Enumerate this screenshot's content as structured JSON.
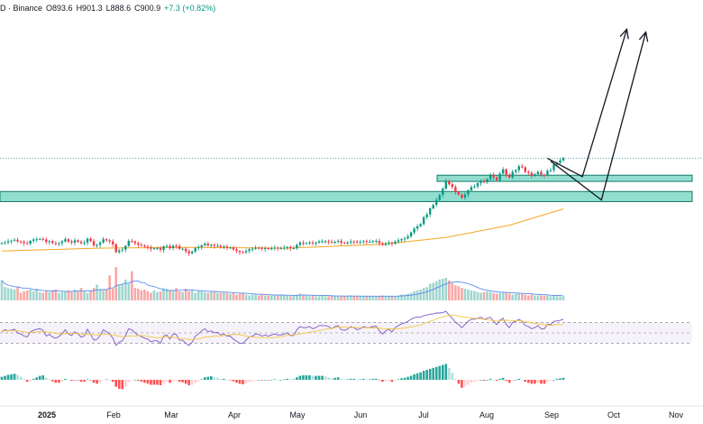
{
  "legend": {
    "prefix": "D · Binance",
    "open": "O893.6",
    "high": "H901.3",
    "low": "L888.6",
    "close": "C900.9",
    "change": "+7.3 (+0.82%)"
  },
  "colors": {
    "up": "#089981",
    "down": "#f23645",
    "volume_up": "#9fd6cf",
    "volume_down": "#f7a9a7",
    "ma": "#f5a623",
    "rsi_line": "#7e57c2",
    "rsi_ma": "#f5c542",
    "zone_fill": "#6cd3bf",
    "zone_stroke": "#127a6b",
    "vol_ma": "#5b8def"
  },
  "chart_data": {
    "type": "candlestick",
    "x_ticks": [
      "2025",
      "Feb",
      "Mar",
      "Apr",
      "May",
      "Jun",
      "Jul",
      "Aug",
      "Sep",
      "Oct",
      "Nov"
    ],
    "price_close": [
      598,
      601,
      605,
      607,
      610,
      604,
      603,
      598,
      596,
      606,
      611,
      612,
      613,
      611,
      602,
      605,
      598,
      595,
      598,
      604,
      612,
      604,
      600,
      608,
      603,
      598,
      600,
      614,
      605,
      590,
      592,
      600,
      612,
      608,
      604,
      594,
      566,
      572,
      575,
      588,
      606,
      604,
      598,
      592,
      590,
      586,
      583,
      578,
      580,
      580,
      574,
      586,
      588,
      580,
      589,
      588,
      578,
      578,
      569,
      562,
      568,
      580,
      584,
      590,
      596,
      590,
      592,
      588,
      589,
      584,
      586,
      582,
      582,
      576,
      570,
      566,
      565,
      570,
      576,
      578,
      582,
      581,
      578,
      580,
      578,
      580,
      582,
      580,
      580,
      582,
      584,
      580,
      580,
      592,
      600,
      598,
      598,
      600,
      598,
      600,
      604,
      604,
      605,
      603,
      600,
      603,
      606,
      599,
      598,
      600,
      604,
      603,
      600,
      602,
      605,
      603,
      603,
      605,
      606,
      598,
      592,
      597,
      600,
      596,
      603,
      608,
      612,
      615,
      622,
      636,
      650,
      658,
      666,
      690,
      700,
      722,
      734,
      752,
      770,
      792,
      820,
      808,
      798,
      780,
      771,
      760,
      771,
      786,
      798,
      800,
      812,
      820,
      815,
      826,
      842,
      832,
      822,
      846,
      861,
      842,
      832,
      852,
      858,
      872,
      868,
      852,
      848,
      838,
      844,
      852,
      842,
      840,
      856,
      858,
      878,
      884,
      893,
      900.9
    ],
    "ma_line": [
      {
        "i": 0,
        "v": 570
      },
      {
        "i": 30,
        "v": 580
      },
      {
        "i": 60,
        "v": 583
      },
      {
        "i": 90,
        "v": 580
      },
      {
        "i": 120,
        "v": 594
      },
      {
        "i": 140,
        "v": 618
      },
      {
        "i": 160,
        "v": 662
      },
      {
        "i": 177,
        "v": 720
      }
    ],
    "support_zone": [
      746,
      782
    ],
    "resistance_zone": [
      818,
      840
    ],
    "projection_arrows": [
      [
        {
          "i": 172,
          "v": 900
        },
        {
          "i": 183,
          "v": 835
        },
        {
          "i": 197,
          "v": 1360
        }
      ],
      [
        {
          "i": 173,
          "v": 890
        },
        {
          "i": 189,
          "v": 752
        },
        {
          "i": 203,
          "v": 1350
        }
      ]
    ],
    "volume": [
      48,
      32,
      30,
      28,
      26,
      32,
      18,
      22,
      24,
      26,
      22,
      28,
      20,
      18,
      24,
      20,
      22,
      26,
      18,
      20,
      22,
      24,
      20,
      26,
      22,
      30,
      22,
      18,
      22,
      30,
      38,
      28,
      24,
      26,
      60,
      28,
      80,
      36,
      40,
      50,
      40,
      70,
      30,
      28,
      24,
      26,
      22,
      18,
      24,
      20,
      22,
      30,
      28,
      24,
      24,
      30,
      22,
      20,
      28,
      22,
      24,
      18,
      24,
      22,
      20,
      18,
      20,
      20,
      18,
      18,
      20,
      18,
      16,
      18,
      14,
      16,
      18,
      14,
      12,
      14,
      14,
      12,
      14,
      12,
      12,
      12,
      14,
      12,
      14,
      12,
      12,
      10,
      12,
      14,
      16,
      14,
      12,
      10,
      12,
      10,
      10,
      12,
      10,
      10,
      12,
      10,
      10,
      10,
      10,
      10,
      12,
      10,
      10,
      10,
      10,
      10,
      10,
      10,
      10,
      10,
      12,
      10,
      10,
      10,
      10,
      12,
      14,
      14,
      16,
      18,
      22,
      24,
      26,
      30,
      32,
      40,
      42,
      46,
      50,
      52,
      54,
      48,
      42,
      36,
      34,
      30,
      28,
      26,
      24,
      22,
      20,
      18,
      20,
      22,
      20,
      18,
      16,
      18,
      20,
      18,
      16,
      14,
      16,
      18,
      16,
      14,
      12,
      14,
      12,
      12,
      12,
      12,
      12,
      10,
      12,
      10,
      10,
      10
    ],
    "rsi": [
      52,
      56,
      54,
      55,
      57,
      50,
      48,
      44,
      42,
      52,
      55,
      57,
      58,
      55,
      44,
      47,
      42,
      40,
      43,
      48,
      56,
      48,
      45,
      52,
      48,
      42,
      44,
      57,
      47,
      36,
      38,
      45,
      56,
      52,
      48,
      40,
      26,
      32,
      35,
      45,
      58,
      56,
      50,
      45,
      43,
      40,
      38,
      33,
      35,
      35,
      30,
      44,
      46,
      38,
      48,
      47,
      36,
      36,
      30,
      26,
      32,
      44,
      48,
      54,
      58,
      52,
      54,
      50,
      51,
      46,
      48,
      44,
      44,
      38,
      34,
      30,
      30,
      36,
      42,
      44,
      48,
      47,
      44,
      46,
      44,
      46,
      48,
      46,
      46,
      48,
      50,
      45,
      45,
      56,
      62,
      60,
      60,
      62,
      58,
      60,
      64,
      64,
      64,
      62,
      58,
      62,
      64,
      56,
      55,
      57,
      62,
      60,
      56,
      58,
      62,
      60,
      60,
      62,
      63,
      54,
      48,
      54,
      57,
      52,
      60,
      64,
      67,
      69,
      72,
      76,
      79,
      80,
      80,
      83,
      84,
      86,
      86,
      88,
      88,
      89,
      91,
      84,
      78,
      70,
      66,
      60,
      66,
      72,
      76,
      76,
      78,
      80,
      76,
      78,
      80,
      72,
      66,
      74,
      78,
      66,
      60,
      70,
      72,
      76,
      72,
      64,
      62,
      58,
      60,
      64,
      58,
      58,
      66,
      66,
      72,
      73,
      74,
      76
    ],
    "macd_hist": [
      6,
      8,
      10,
      11,
      12,
      10,
      6,
      2,
      -4,
      -3,
      2,
      5,
      8,
      9,
      4,
      1,
      -3,
      -6,
      -6,
      -3,
      2,
      1,
      -2,
      0,
      -1,
      -4,
      -4,
      1,
      -1,
      -6,
      -8,
      -6,
      -1,
      1,
      0,
      -4,
      -14,
      -18,
      -19,
      -14,
      -5,
      -1,
      0,
      -2,
      -4,
      -6,
      -8,
      -10,
      -10,
      -10,
      -11,
      -7,
      -4,
      -6,
      -3,
      -2,
      -4,
      -5,
      -8,
      -11,
      -10,
      -6,
      -3,
      1,
      5,
      6,
      7,
      5,
      4,
      2,
      2,
      0,
      -1,
      -3,
      -6,
      -8,
      -9,
      -7,
      -5,
      -3,
      -1,
      0,
      -1,
      0,
      -1,
      0,
      1,
      0,
      0,
      1,
      2,
      1,
      1,
      5,
      8,
      9,
      9,
      9,
      8,
      8,
      8,
      8,
      7,
      5,
      3,
      4,
      5,
      2,
      1,
      1,
      2,
      2,
      0,
      1,
      2,
      1,
      1,
      2,
      2,
      -1,
      -4,
      -3,
      -2,
      -4,
      -1,
      1,
      3,
      4,
      6,
      8,
      11,
      13,
      15,
      18,
      20,
      22,
      24,
      26,
      28,
      30,
      32,
      24,
      14,
      2,
      -8,
      -16,
      -14,
      -10,
      -6,
      -4,
      -2,
      0,
      -2,
      0,
      2,
      0,
      -2,
      2,
      4,
      -2,
      -6,
      -2,
      0,
      2,
      0,
      -4,
      -6,
      -8,
      -8,
      -6,
      -8,
      -8,
      -4,
      -2,
      0,
      2,
      3,
      4
    ]
  }
}
